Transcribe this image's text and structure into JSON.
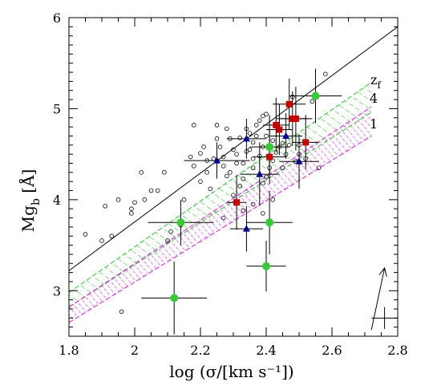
{
  "chart_data": {
    "type": "scatter",
    "title": "",
    "xlabel": "log (σ/[km s⁻¹])",
    "ylabel": "Mg",
    "ylabel_sub": "b",
    "ylabel_unit": " [Å]",
    "xlim": [
      1.8,
      2.8
    ],
    "ylim": [
      2.5,
      6.0
    ],
    "xticks": [
      "1.8",
      "2",
      "2.2",
      "2.4",
      "2.6",
      "2.8"
    ],
    "yticks": [
      "3",
      "4",
      "5",
      "6"
    ],
    "annotations": {
      "zf_label": "z",
      "zf_sub": "f",
      "band1_label": "4",
      "band2_label": "1"
    },
    "reference_line": {
      "x": [
        1.8,
        2.8
      ],
      "y": [
        3.22,
        5.9
      ]
    },
    "bands": [
      {
        "name": "4",
        "color": "#22cc22",
        "x": [
          1.8,
          2.72
        ],
        "lower": [
          2.82,
          4.96
        ],
        "upper": [
          2.98,
          5.29
        ]
      },
      {
        "name": "1",
        "color": "#ee11ee",
        "x": [
          1.8,
          2.72
        ],
        "lower": [
          2.65,
          4.7
        ],
        "upper": [
          2.82,
          5.02
        ]
      }
    ],
    "open_circles": [
      [
        1.85,
        3.62
      ],
      [
        1.9,
        3.55
      ],
      [
        1.91,
        3.93
      ],
      [
        1.93,
        3.6
      ],
      [
        1.95,
        4.0
      ],
      [
        1.96,
        2.77
      ],
      [
        1.99,
        3.85
      ],
      [
        1.99,
        3.9
      ],
      [
        2.0,
        3.97
      ],
      [
        2.02,
        4.3
      ],
      [
        2.03,
        4.0
      ],
      [
        2.05,
        4.1
      ],
      [
        2.07,
        4.1
      ],
      [
        2.09,
        4.3
      ],
      [
        2.1,
        3.55
      ],
      [
        2.11,
        3.65
      ],
      [
        2.14,
        3.72
      ],
      [
        2.15,
        4.0
      ],
      [
        2.17,
        4.47
      ],
      [
        2.18,
        4.37
      ],
      [
        2.18,
        4.82
      ],
      [
        2.2,
        4.2
      ],
      [
        2.2,
        4.51
      ],
      [
        2.21,
        4.58
      ],
      [
        2.22,
        4.3
      ],
      [
        2.22,
        4.43
      ],
      [
        2.23,
        4.12
      ],
      [
        2.24,
        4.45
      ],
      [
        2.25,
        4.67
      ],
      [
        2.25,
        4.82
      ],
      [
        2.26,
        4.58
      ],
      [
        2.27,
        4.47
      ],
      [
        2.27,
        4.37
      ],
      [
        2.28,
        4.78
      ],
      [
        2.28,
        4.26
      ],
      [
        2.29,
        4.67
      ],
      [
        2.29,
        4.3
      ],
      [
        2.3,
        4.55
      ],
      [
        2.3,
        4.05
      ],
      [
        2.31,
        4.5
      ],
      [
        2.31,
        4.4
      ],
      [
        2.32,
        4.68
      ],
      [
        2.33,
        4.4
      ],
      [
        2.33,
        4.23
      ],
      [
        2.34,
        4.78
      ],
      [
        2.34,
        4.53
      ],
      [
        2.35,
        4.73
      ],
      [
        2.35,
        4.55
      ],
      [
        2.36,
        4.45
      ],
      [
        2.36,
        4.35
      ],
      [
        2.36,
        4.63
      ],
      [
        2.37,
        4.82
      ],
      [
        2.37,
        4.7
      ],
      [
        2.38,
        4.87
      ],
      [
        2.38,
        4.48
      ],
      [
        2.39,
        4.92
      ],
      [
        2.39,
        4.58
      ],
      [
        2.39,
        4.18
      ],
      [
        2.4,
        4.94
      ],
      [
        2.4,
        4.7
      ],
      [
        2.4,
        4.25
      ],
      [
        2.41,
        4.58
      ],
      [
        2.41,
        4.35
      ],
      [
        2.42,
        4.65
      ],
      [
        2.42,
        4.43
      ],
      [
        2.43,
        4.52
      ],
      [
        2.44,
        4.58
      ],
      [
        2.45,
        4.62
      ],
      [
        2.46,
        4.5
      ],
      [
        2.47,
        4.6
      ],
      [
        2.48,
        5.13
      ],
      [
        2.5,
        4.6
      ],
      [
        2.5,
        4.5
      ],
      [
        2.52,
        4.62
      ],
      [
        2.52,
        4.45
      ],
      [
        2.54,
        5.08
      ],
      [
        2.56,
        4.35
      ],
      [
        2.58,
        5.38
      ],
      [
        2.27,
        3.8
      ],
      [
        2.33,
        3.88
      ],
      [
        2.36,
        3.95
      ],
      [
        2.39,
        3.85
      ],
      [
        2.45,
        4.35
      ],
      [
        2.42,
        4.0
      ],
      [
        2.49,
        4.42
      ],
      [
        2.32,
        4.15
      ]
    ],
    "red_squares": [
      {
        "x": 2.31,
        "y": 3.97,
        "xerr": 0.03,
        "yerr": 0.3
      },
      {
        "x": 2.43,
        "y": 4.82,
        "xerr": 0.04,
        "yerr": 0.3
      },
      {
        "x": 2.44,
        "y": 4.77,
        "xerr": 0.04,
        "yerr": 0.28
      },
      {
        "x": 2.47,
        "y": 5.05,
        "xerr": 0.05,
        "yerr": 0.28
      },
      {
        "x": 2.48,
        "y": 4.89,
        "xerr": 0.05,
        "yerr": 0.3
      },
      {
        "x": 2.49,
        "y": 4.89,
        "xerr": 0.05,
        "yerr": 0.35
      },
      {
        "x": 2.52,
        "y": 4.63,
        "xerr": 0.04,
        "yerr": 0.3
      },
      {
        "x": 2.41,
        "y": 4.47,
        "xerr": 0.05,
        "yerr": 0.3
      }
    ],
    "blue_triangles": [
      {
        "x": 2.25,
        "y": 4.43,
        "xerr": 0.1,
        "yerr": 0.2
      },
      {
        "x": 2.34,
        "y": 4.67,
        "xerr": 0.06,
        "yerr": 0.22
      },
      {
        "x": 2.38,
        "y": 4.28,
        "xerr": 0.06,
        "yerr": 0.35
      },
      {
        "x": 2.46,
        "y": 4.7,
        "xerr": 0.05,
        "yerr": 0.25
      },
      {
        "x": 2.5,
        "y": 4.42,
        "xerr": 0.06,
        "yerr": 0.3
      },
      {
        "x": 2.34,
        "y": 3.68,
        "xerr": 0.05,
        "yerr": 0.25
      }
    ],
    "green_circles": [
      {
        "x": 2.12,
        "y": 2.92,
        "xerr": 0.1,
        "yerr": 0.4
      },
      {
        "x": 2.14,
        "y": 3.75,
        "xerr": 0.1,
        "yerr": 0.25
      },
      {
        "x": 2.4,
        "y": 3.27,
        "xerr": 0.06,
        "yerr": 0.28
      },
      {
        "x": 2.41,
        "y": 3.75,
        "xerr": 0.07,
        "yerr": 0.35
      },
      {
        "x": 2.41,
        "y": 4.58,
        "xerr": 0.06,
        "yerr": 0.35
      },
      {
        "x": 2.55,
        "y": 5.14,
        "xerr": 0.08,
        "yerr": 0.3
      }
    ],
    "arrow": {
      "from": [
        2.72,
        2.57
      ],
      "to": [
        2.76,
        3.25
      ]
    },
    "typical_error": {
      "x": 2.76,
      "y": 2.7,
      "xerr": 0.04,
      "yerr": 0.12
    },
    "colors": {
      "red": "#cc0000",
      "blue": "#000099",
      "green": "#33cc33",
      "axes": "#000000"
    }
  }
}
